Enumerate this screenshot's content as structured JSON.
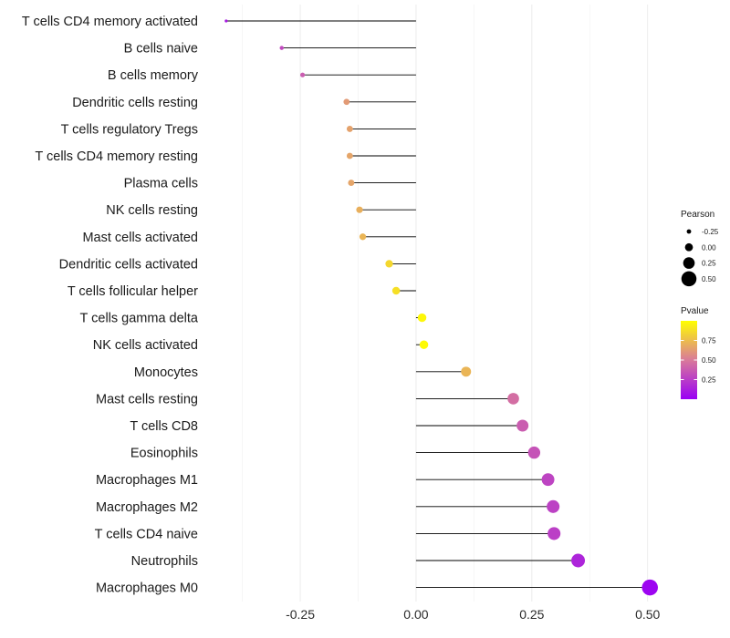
{
  "chart_data": {
    "type": "lollipop",
    "categories": [
      "T cells CD4 memory activated",
      "B cells naive",
      "B cells memory",
      "Dendritic cells resting",
      "T cells regulatory  Tregs",
      "T cells CD4 memory resting",
      "Plasma cells",
      "NK cells resting",
      "Mast cells activated",
      "Dendritic cells activated",
      "T cells follicular helper",
      "T cells gamma delta",
      "NK cells activated",
      "Monocytes",
      "Mast cells resting",
      "T cells CD8",
      "Eosinophils",
      "Macrophages M1",
      "Macrophages M2",
      "T cells CD4 naive",
      "Neutrophils",
      "Macrophages M0"
    ],
    "pearson": [
      -0.41,
      -0.29,
      -0.245,
      -0.15,
      -0.143,
      -0.143,
      -0.14,
      -0.122,
      -0.115,
      -0.058,
      -0.043,
      0.013,
      0.017,
      0.108,
      0.21,
      0.23,
      0.255,
      0.285,
      0.296,
      0.298,
      0.35,
      0.505
    ],
    "pvalue": [
      0.1,
      0.3,
      0.38,
      0.62,
      0.65,
      0.66,
      0.66,
      0.7,
      0.72,
      0.85,
      0.88,
      0.97,
      0.98,
      0.72,
      0.45,
      0.38,
      0.34,
      0.28,
      0.27,
      0.26,
      0.15,
      0.02
    ],
    "x_ticks": [
      -0.25,
      0.0,
      0.25,
      0.5
    ],
    "x_tick_labels": [
      "-0.25",
      "0.00",
      "0.25",
      "0.50"
    ],
    "xlim": [
      -0.455,
      0.54
    ],
    "xlabel": "",
    "ylabel": "",
    "size_legend": {
      "title": "Pearson",
      "values": [
        -0.25,
        0.0,
        0.25,
        0.5
      ],
      "labels": [
        "-0.25",
        "0.00",
        "0.25",
        "0.50"
      ]
    },
    "color_legend": {
      "title": "Pvalue",
      "ticks": [
        0.75,
        0.5,
        0.25
      ],
      "labels": [
        "0.75",
        "0.50",
        "0.25"
      ],
      "range": [
        0.0,
        1.0
      ],
      "colors": {
        "low": "#9a00f5",
        "mid": "#d97a9a",
        "high": "#ffff00"
      }
    }
  }
}
